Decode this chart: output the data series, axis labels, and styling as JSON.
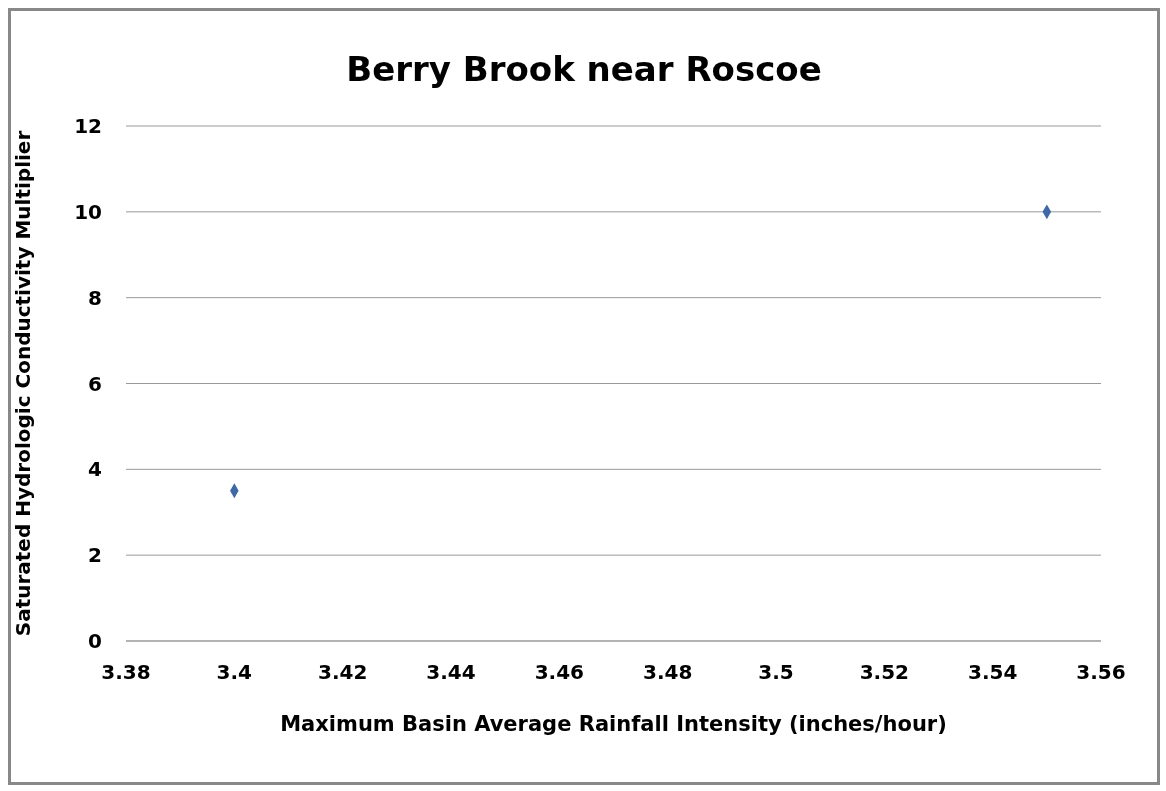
{
  "chart_data": {
    "type": "scatter",
    "title": "Berry Brook near Roscoe",
    "xlabel": "Maximum Basin Average Rainfall Intensity (inches/hour)",
    "ylabel": "Saturated Hydrologic Conductivity Multiplier",
    "x": [
      3.4,
      3.55
    ],
    "values": [
      3.5,
      10
    ],
    "color": "#3f68a6",
    "marker": "diamond",
    "xlim": [
      3.38,
      3.56
    ],
    "xticks": [
      3.38,
      3.4,
      3.42,
      3.44,
      3.46,
      3.48,
      3.5,
      3.52,
      3.54,
      3.56
    ],
    "ylim": [
      0,
      12
    ],
    "yticks": [
      0,
      2,
      4,
      6,
      8,
      10,
      12
    ],
    "grid": "y",
    "legend": false
  }
}
